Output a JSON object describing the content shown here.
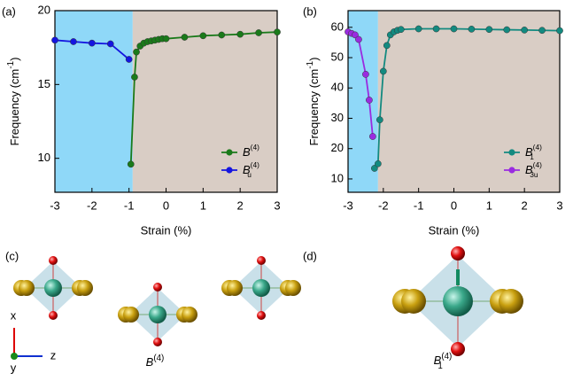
{
  "chart_data": [
    {
      "type": "line",
      "panel": "(a)",
      "xlabel": "Strain (%)",
      "ylabel": {
        "text": "Frequency (cm",
        "sup": "-1",
        "end": ")"
      },
      "xlim": [
        -3,
        3
      ],
      "ylim": [
        7.7,
        20
      ],
      "xticks": [
        -3,
        -2,
        -1,
        0,
        1,
        2,
        3
      ],
      "yticks": [
        10,
        15,
        20
      ],
      "regions": [
        {
          "xlim": [
            -3,
            -0.9
          ],
          "color": "#8fd8f8"
        },
        {
          "xlim": [
            -0.9,
            3
          ],
          "color": "#d9cdc5"
        }
      ],
      "legend": "lower right",
      "series": [
        {
          "name": "B",
          "superscript": "(4)",
          "color": "#1a7a1a",
          "x": [
            -0.95,
            -0.85,
            -0.8,
            -0.7,
            -0.6,
            -0.5,
            -0.4,
            -0.3,
            -0.2,
            -0.1,
            0,
            0.5,
            1,
            1.5,
            2,
            2.5,
            3
          ],
          "values": [
            9.6,
            15.5,
            17.2,
            17.6,
            17.8,
            17.9,
            17.95,
            18.0,
            18.05,
            18.1,
            18.1,
            18.2,
            18.3,
            18.35,
            18.4,
            18.5,
            18.55
          ]
        },
        {
          "name": "B",
          "subscript": "u",
          "superscript": "(4)",
          "color": "#1515e0",
          "x": [
            -3,
            -2.5,
            -2,
            -1.5,
            -1
          ],
          "values": [
            18.0,
            17.9,
            17.8,
            17.75,
            16.7
          ]
        }
      ]
    },
    {
      "type": "line",
      "panel": "(b)",
      "xlabel": "Strain (%)",
      "ylabel": {
        "text": "Frequency (cm",
        "sup": "-1",
        "end": ")"
      },
      "xlim": [
        -3,
        3
      ],
      "ylim": [
        5.6,
        65.5
      ],
      "xticks": [
        -3,
        -2,
        -1,
        0,
        1,
        2,
        3
      ],
      "yticks": [
        10,
        20,
        30,
        40,
        50,
        60
      ],
      "regions": [
        {
          "xlim": [
            -3,
            -2.15
          ],
          "color": "#8fd8f8"
        },
        {
          "xlim": [
            -2.15,
            3
          ],
          "color": "#d9cdc5"
        }
      ],
      "legend": "lower right",
      "series": [
        {
          "name": "B",
          "subscript": "1",
          "superscript": "(4)",
          "color": "#138a80",
          "x": [
            -2.25,
            -2.15,
            -2.1,
            -2.0,
            -1.9,
            -1.8,
            -1.7,
            -1.6,
            -1.5,
            -1,
            -0.5,
            0,
            0.5,
            1,
            1.5,
            2,
            2.5,
            3
          ],
          "values": [
            13.5,
            15,
            29.5,
            45.5,
            54,
            57.5,
            58.5,
            59,
            59.3,
            59.5,
            59.5,
            59.5,
            59.4,
            59.3,
            59.2,
            59.1,
            59,
            58.9
          ]
        },
        {
          "name": "B",
          "subscript": "3u",
          "superscript": "(4)",
          "color": "#9a2be0",
          "x": [
            -3,
            -2.9,
            -2.8,
            -2.7,
            -2.5,
            -2.4,
            -2.3
          ],
          "values": [
            58.5,
            58,
            57.5,
            56,
            44.5,
            36,
            24
          ]
        }
      ]
    }
  ],
  "diagrams": {
    "c": {
      "panel": "(c)",
      "label": {
        "name": "B",
        "superscript": "(4)"
      },
      "axes": {
        "x": "x",
        "y": "y",
        "z": "z"
      }
    },
    "d": {
      "panel": "(d)",
      "label": {
        "name": "B",
        "subscript": "1",
        "superscript": "(4)"
      }
    }
  }
}
